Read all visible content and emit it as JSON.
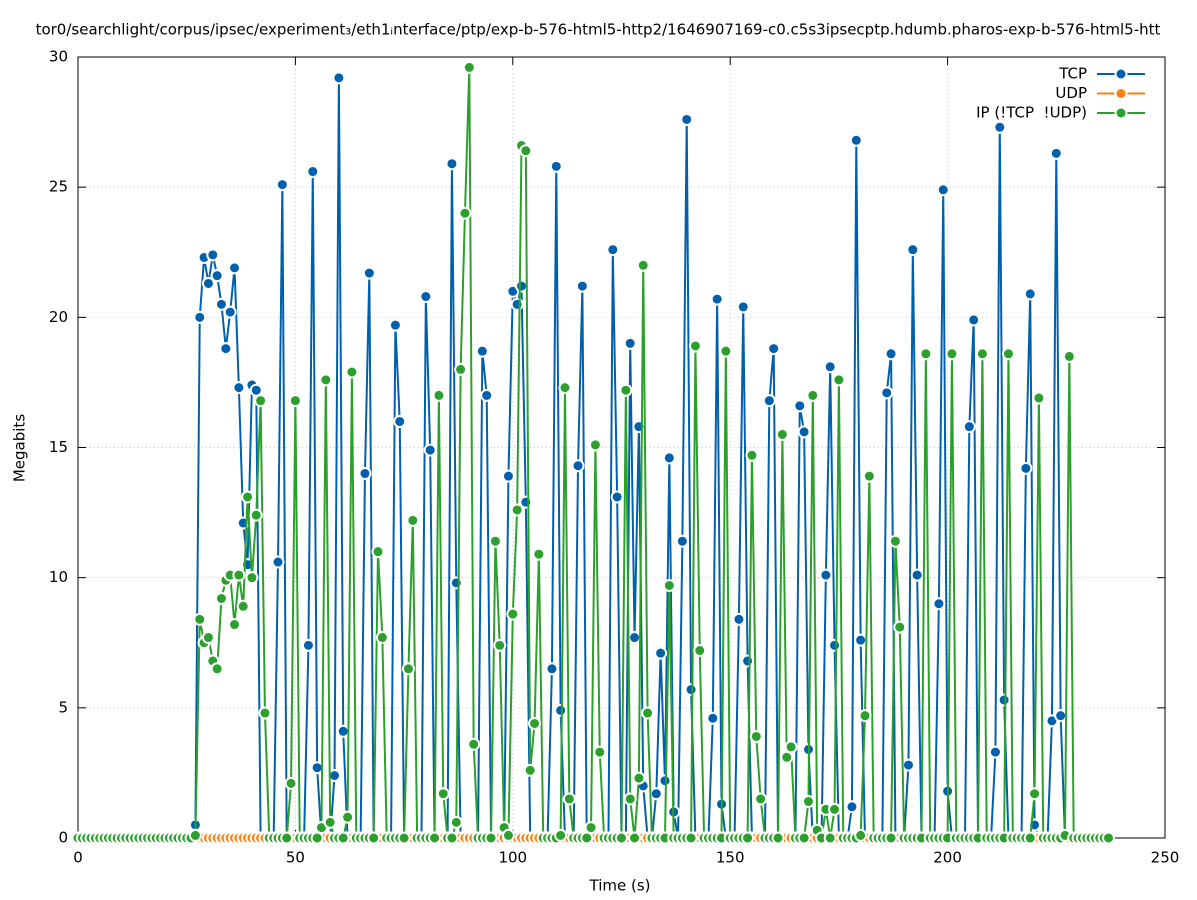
{
  "chart_data": {
    "type": "line",
    "title": "tor0/searchlight/corpus/ipsec/experiment₃/eth1ᵢnterface/ptp/exp-b-576-html5-http2/1646907169-c0.c5s3ipsecptp.hdumb.pharos-exp-b-576-html5-htt",
    "x_label": "Time (s)",
    "y_label": "Megabits",
    "xlim": [
      0,
      250
    ],
    "xticks": [
      0,
      50,
      100,
      150,
      200,
      250
    ],
    "ylim": [
      0,
      30
    ],
    "yticks": [
      0,
      5,
      10,
      15,
      20,
      25,
      30
    ],
    "grid": true,
    "legend": "top-right",
    "x": [
      0,
      1,
      2,
      3,
      4,
      5,
      6,
      7,
      8,
      9,
      10,
      11,
      12,
      13,
      14,
      15,
      16,
      17,
      18,
      19,
      20,
      21,
      22,
      23,
      24,
      25,
      26,
      27,
      28,
      29,
      30,
      31,
      32,
      33,
      34,
      35,
      36,
      37,
      38,
      39,
      40,
      41,
      42,
      43,
      44,
      45,
      46,
      47,
      48,
      49,
      50,
      51,
      52,
      53,
      54,
      55,
      56,
      57,
      58,
      59,
      60,
      61,
      62,
      63,
      64,
      65,
      66,
      67,
      68,
      69,
      70,
      71,
      72,
      73,
      74,
      75,
      76,
      77,
      78,
      79,
      80,
      81,
      82,
      83,
      84,
      85,
      86,
      87,
      88,
      89,
      90,
      91,
      92,
      93,
      94,
      95,
      96,
      97,
      98,
      99,
      100,
      101,
      102,
      103,
      104,
      105,
      106,
      107,
      108,
      109,
      110,
      111,
      112,
      113,
      114,
      115,
      116,
      117,
      118,
      119,
      120,
      121,
      122,
      123,
      124,
      125,
      126,
      127,
      128,
      129,
      130,
      131,
      132,
      133,
      134,
      135,
      136,
      137,
      138,
      139,
      140,
      141,
      142,
      143,
      144,
      145,
      146,
      147,
      148,
      149,
      150,
      151,
      152,
      153,
      154,
      155,
      156,
      157,
      158,
      159,
      160,
      161,
      162,
      163,
      164,
      165,
      166,
      167,
      168,
      169,
      170,
      171,
      172,
      173,
      174,
      175,
      176,
      177,
      178,
      179,
      180,
      181,
      182,
      183,
      184,
      185,
      186,
      187,
      188,
      189,
      190,
      191,
      192,
      193,
      194,
      195,
      196,
      197,
      198,
      199,
      200,
      201,
      202,
      203,
      204,
      205,
      206,
      207,
      208,
      209,
      210,
      211,
      212,
      213,
      214,
      215,
      216,
      217,
      218,
      219,
      220,
      221,
      222,
      223,
      224,
      225,
      226,
      227,
      228,
      229,
      230,
      231,
      232,
      233,
      234,
      235,
      236,
      237
    ],
    "series": [
      {
        "name": "TCP",
        "color": "#0060ad",
        "values": [
          0,
          0,
          0,
          0,
          0,
          0,
          0,
          0,
          0,
          0,
          0,
          0,
          0,
          0,
          0,
          0,
          0,
          0,
          0,
          0,
          0,
          0,
          0,
          0,
          0,
          0,
          0,
          0.5,
          20,
          22.3,
          21.3,
          22.4,
          21.6,
          20.5,
          18.8,
          20.2,
          21.9,
          17.3,
          12.1,
          10.5,
          17.4,
          17.2,
          0,
          0,
          0,
          0,
          10.6,
          25.1,
          0,
          0,
          0,
          0,
          0,
          7.4,
          25.6,
          2.7,
          0,
          0,
          0,
          2.4,
          29.2,
          4.1,
          0,
          0,
          0,
          0,
          14,
          21.7,
          0,
          0,
          0,
          0,
          0,
          19.7,
          16,
          0,
          0,
          0,
          0,
          0,
          20.8,
          14.9,
          0,
          0,
          0,
          0,
          25.9,
          9.8,
          0,
          0,
          0,
          0,
          0,
          18.7,
          17,
          0,
          0,
          0,
          0,
          13.9,
          21,
          20.5,
          21.2,
          12.9,
          0,
          0,
          0,
          0,
          0,
          6.5,
          25.8,
          4.9,
          0,
          0,
          0,
          14.3,
          21.2,
          0,
          0,
          0,
          0,
          0,
          0,
          22.6,
          13.1,
          0,
          0,
          19,
          7.7,
          15.8,
          2,
          0,
          0,
          1.7,
          7.1,
          2.2,
          14.6,
          1,
          0,
          11.4,
          27.6,
          5.7,
          0,
          0,
          0,
          0,
          4.6,
          20.7,
          1.3,
          0,
          0,
          0,
          8.4,
          20.4,
          6.8,
          0,
          0,
          0,
          0,
          16.8,
          18.8,
          0,
          0,
          0,
          0,
          0,
          16.6,
          15.6,
          3.4,
          0,
          0,
          0,
          10.1,
          18.1,
          7.4,
          0,
          0,
          0,
          1.2,
          26.8,
          7.6,
          0,
          0,
          0,
          0,
          0,
          17.1,
          18.6,
          0,
          0,
          0,
          2.8,
          22.6,
          10.1,
          0,
          0,
          0,
          0,
          9,
          24.9,
          1.8,
          0,
          0,
          0,
          0,
          15.8,
          19.9,
          0,
          0,
          0,
          0,
          3.3,
          27.3,
          5.3,
          0,
          0,
          0,
          0,
          14.2,
          20.9,
          0.5,
          0,
          0,
          0,
          4.5,
          26.3,
          4.7,
          0,
          0,
          0,
          0,
          0,
          0,
          0,
          0,
          0,
          0,
          0
        ]
      },
      {
        "name": "UDP",
        "color": "#ff7f0e",
        "values": [
          0,
          0,
          0,
          0,
          0,
          0,
          0,
          0,
          0,
          0,
          0,
          0,
          0,
          0,
          0,
          0,
          0,
          0,
          0,
          0,
          0,
          0,
          0,
          0,
          0,
          0,
          0,
          0,
          0,
          0,
          0,
          0,
          0,
          0,
          0,
          0,
          0,
          0,
          0,
          0,
          0,
          0,
          0,
          0,
          0,
          0,
          0,
          0,
          0,
          0,
          0,
          0,
          0,
          0,
          0,
          0,
          0,
          0,
          0,
          0,
          0,
          0,
          0,
          0,
          0,
          0,
          0,
          0,
          0,
          0,
          0,
          0,
          0,
          0,
          0,
          0,
          0,
          0,
          0,
          0,
          0,
          0,
          0,
          0,
          0,
          0,
          0,
          0,
          0,
          0,
          0,
          0,
          0,
          0,
          0,
          0,
          0,
          0,
          0,
          0,
          0,
          0,
          0,
          0,
          0,
          0,
          0,
          0,
          0,
          0,
          0,
          0,
          0,
          0,
          0,
          0,
          0,
          0,
          0,
          0,
          0,
          0,
          0,
          0,
          0,
          0,
          0,
          0,
          0,
          0,
          0,
          0,
          0,
          0,
          0,
          0,
          0,
          0,
          0,
          0,
          0,
          0,
          0,
          0,
          0,
          0,
          0,
          0,
          0,
          0,
          0,
          0,
          0,
          0,
          0,
          0,
          0,
          0,
          0,
          0,
          0,
          0,
          0,
          0,
          0,
          0,
          0,
          0,
          0,
          0,
          0,
          0,
          0,
          0,
          0,
          0,
          0,
          0,
          0,
          0,
          0,
          0,
          0,
          0,
          0,
          0,
          0,
          0,
          0,
          0,
          0,
          0,
          0,
          0,
          0,
          0,
          0,
          0,
          0,
          0,
          0,
          0,
          0,
          0,
          0,
          0,
          0,
          0,
          0,
          0,
          0,
          0,
          0,
          0,
          0,
          0,
          0,
          0,
          0,
          0,
          0,
          0,
          0,
          0,
          0,
          0,
          0,
          0,
          0,
          0,
          0,
          0,
          0,
          0,
          0,
          0,
          0,
          0
        ]
      },
      {
        "name": "IP (!TCP  !UDP)",
        "color": "#2ca02c",
        "values": [
          0,
          0,
          0,
          0,
          0,
          0,
          0,
          0,
          0,
          0,
          0,
          0,
          0,
          0,
          0,
          0,
          0,
          0,
          0,
          0,
          0,
          0,
          0,
          0,
          0,
          0,
          0,
          0.1,
          8.4,
          7.5,
          7.7,
          6.8,
          6.5,
          9.2,
          9.9,
          10.1,
          8.2,
          10.1,
          8.9,
          13.1,
          10,
          12.4,
          16.8,
          4.8,
          0,
          0,
          0,
          0,
          0,
          2.1,
          16.8,
          0,
          0,
          0,
          0,
          0,
          0.4,
          17.6,
          0.6,
          0,
          0,
          0,
          0.8,
          17.9,
          0,
          0,
          0,
          0,
          0,
          11,
          7.7,
          0,
          0,
          0,
          0,
          0,
          6.5,
          12.2,
          0,
          0,
          0,
          0,
          0,
          17,
          1.7,
          0,
          0,
          0.6,
          18,
          24,
          29.6,
          3.6,
          0,
          0,
          0,
          0,
          11.4,
          7.4,
          0.4,
          0.1,
          8.6,
          12.6,
          26.6,
          26.4,
          2.6,
          4.4,
          10.9,
          0,
          0,
          0,
          0,
          0.1,
          17.3,
          1.5,
          0,
          0,
          0,
          0,
          0.4,
          15.1,
          3.3,
          0,
          0,
          0,
          0,
          0,
          17.2,
          1.5,
          0,
          2.3,
          22,
          4.8,
          0,
          0,
          0,
          0,
          9.7,
          0,
          0,
          0,
          0,
          0,
          18.9,
          7.2,
          0,
          0,
          0,
          0,
          0,
          18.7,
          0,
          0,
          0,
          0,
          0,
          14.7,
          3.9,
          1.5,
          0,
          0,
          0,
          0,
          15.5,
          3.1,
          3.5,
          0,
          0,
          0,
          1.4,
          17,
          0.3,
          0,
          1.1,
          0,
          1.1,
          17.6,
          0,
          0,
          0,
          0,
          0.1,
          4.7,
          13.9,
          0,
          0,
          0,
          0,
          0,
          11.4,
          8.1,
          0,
          0,
          0,
          0,
          0,
          18.6,
          0,
          0,
          0,
          0,
          0,
          18.6,
          0,
          0,
          0,
          0,
          0,
          0,
          18.6,
          0,
          0,
          0,
          0,
          0,
          18.6,
          0,
          0,
          0,
          0,
          0,
          1.7,
          16.9,
          0,
          0,
          0,
          0,
          0,
          0.1,
          18.5,
          0,
          0,
          0,
          0,
          0,
          0,
          0,
          0,
          0
        ]
      }
    ]
  }
}
